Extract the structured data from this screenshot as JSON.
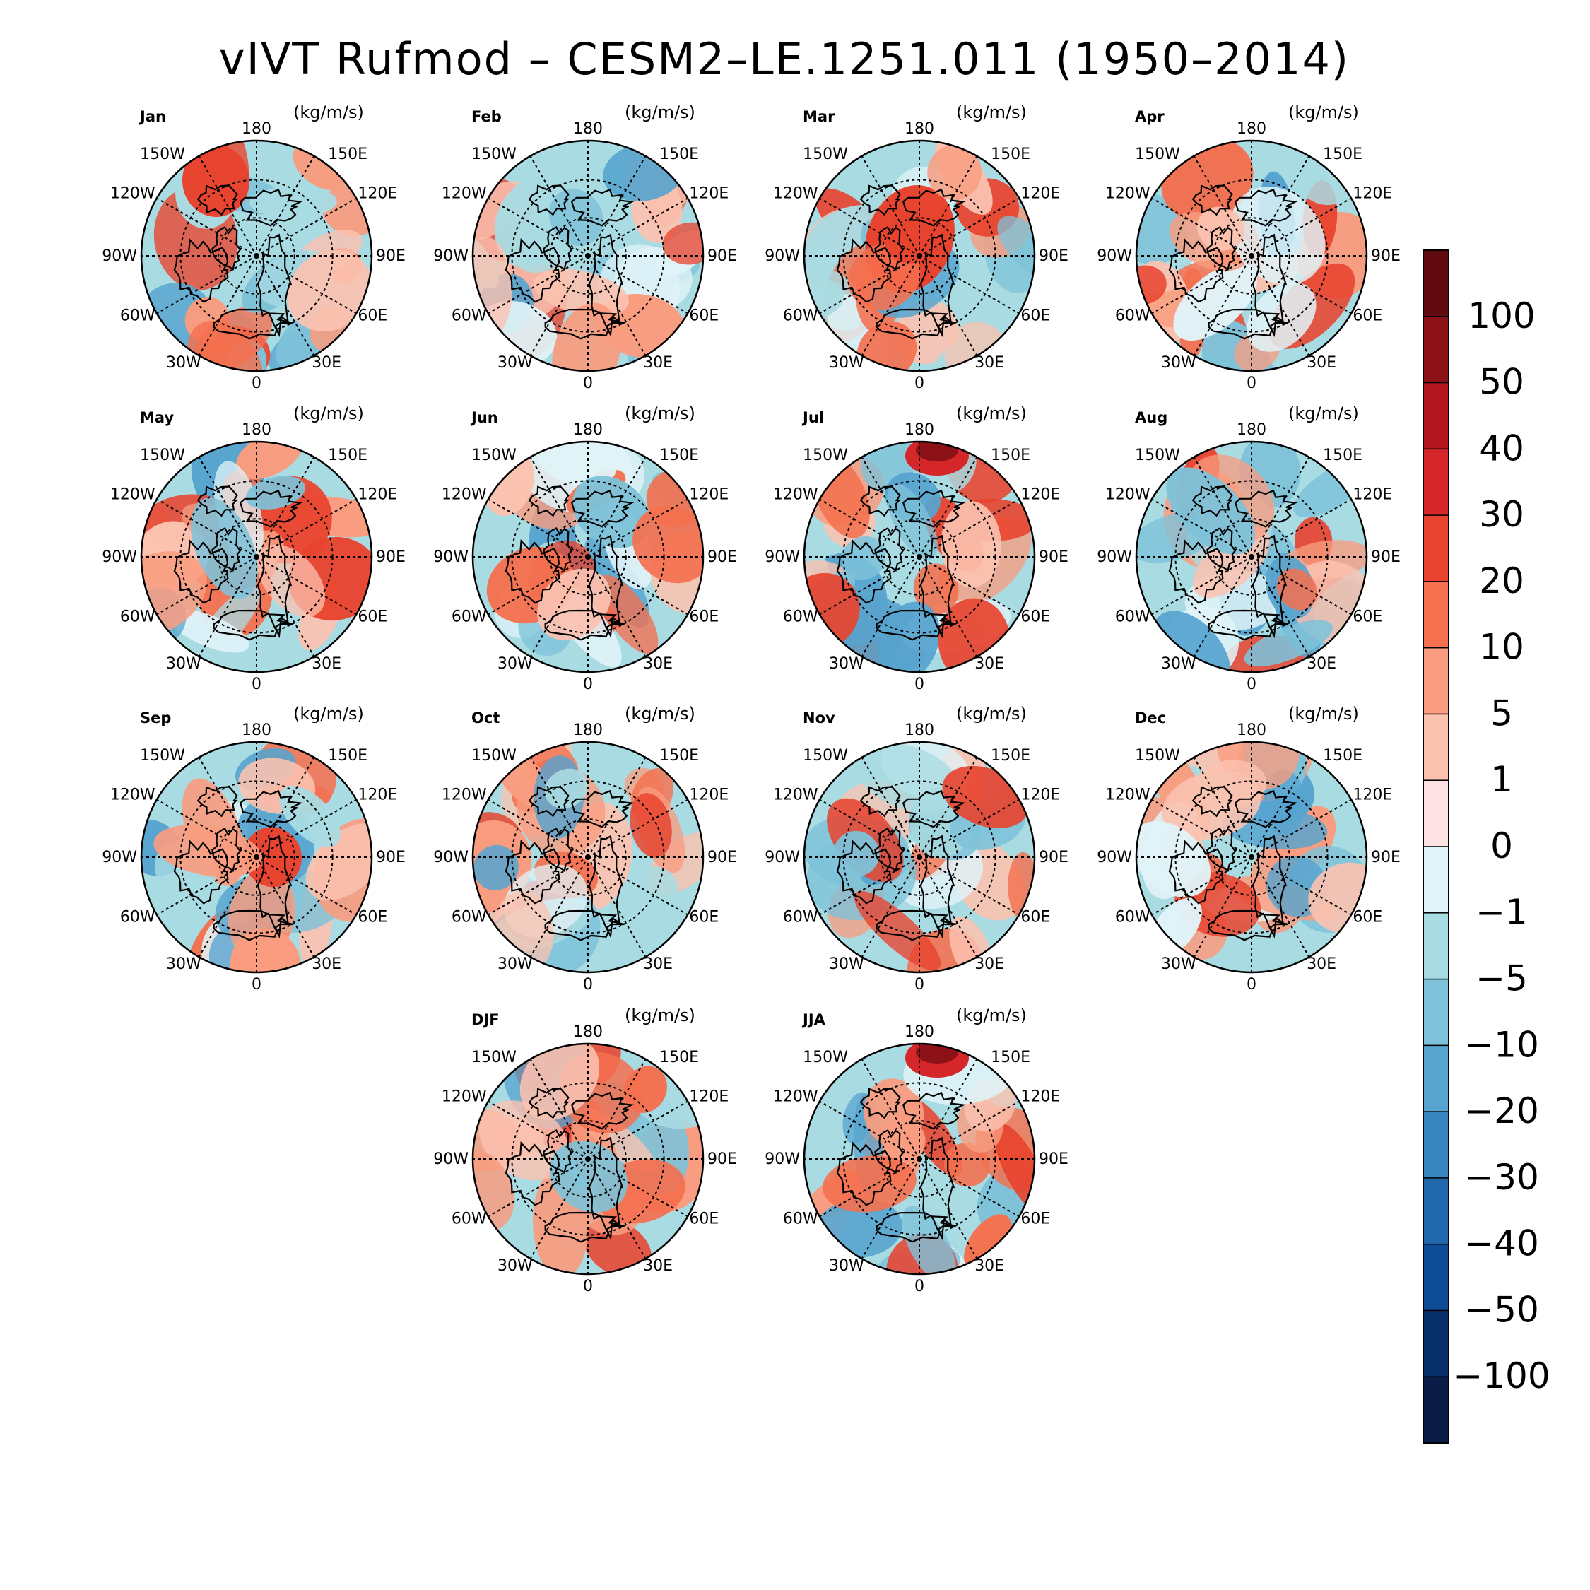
{
  "title": "vIVT Rufmod – CESM2–LE.1251.011 (1950–2014)",
  "unit_label": "(kg/m/s)",
  "longitude_labels": [
    "180",
    "150E",
    "120E",
    "90E",
    "60E",
    "30E",
    "0",
    "30W",
    "60W",
    "90W",
    "120W",
    "150W"
  ],
  "panels": [
    {
      "name": "Jan",
      "dominant": "mixed"
    },
    {
      "name": "Feb",
      "dominant": "mixed"
    },
    {
      "name": "Mar",
      "dominant": "mixed"
    },
    {
      "name": "Apr",
      "dominant": "mixed"
    },
    {
      "name": "May",
      "dominant": "mixed"
    },
    {
      "name": "Jun",
      "dominant": "mixed"
    },
    {
      "name": "Jul",
      "dominant": "mixed"
    },
    {
      "name": "Aug",
      "dominant": "mixed"
    },
    {
      "name": "Sep",
      "dominant": "mixed"
    },
    {
      "name": "Oct",
      "dominant": "mixed"
    },
    {
      "name": "Nov",
      "dominant": "mixed"
    },
    {
      "name": "Dec",
      "dominant": "mixed"
    },
    {
      "name": "DJF",
      "dominant": "mixed"
    },
    {
      "name": "JJA",
      "dominant": "mixed"
    }
  ],
  "colorbar": {
    "labels": [
      "100",
      "50",
      "40",
      "30",
      "20",
      "10",
      "5",
      "1",
      "0",
      "−1",
      "−5",
      "−10",
      "−20",
      "−30",
      "−40",
      "−50",
      "−100"
    ],
    "colors": [
      "#610a0f",
      "#8c1218",
      "#b3161f",
      "#d5262a",
      "#e8432e",
      "#f4704f",
      "#f99c7f",
      "#fbc2b0",
      "#fde2e3",
      "#e0f3f8",
      "#a9dbe2",
      "#7ec2d9",
      "#57a4cf",
      "#3886c0",
      "#2168ad",
      "#0e4d95",
      "#07306b",
      "#0a1c45"
    ]
  }
}
